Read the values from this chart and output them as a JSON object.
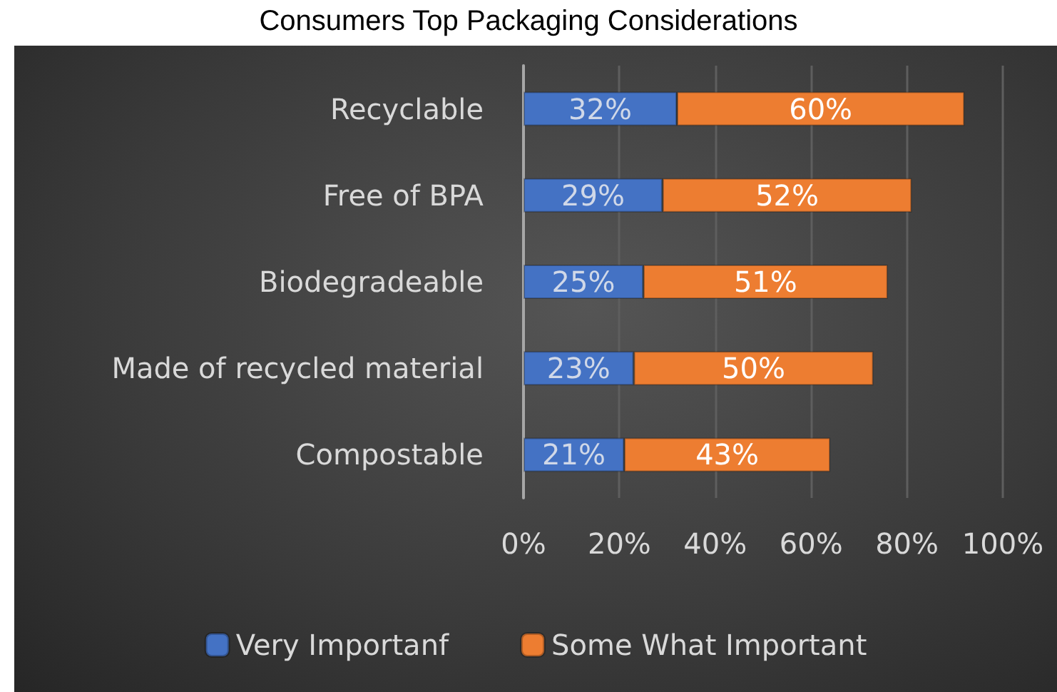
{
  "chart_data": {
    "type": "bar",
    "orientation": "horizontal",
    "stacked": true,
    "title": "Consumers Top Packaging Considerations",
    "categories": [
      "Recyclable",
      "Free of BPA",
      "Biodegradeable",
      "Made of recycled material",
      "Compostable"
    ],
    "series": [
      {
        "name": "Very Importanf",
        "color": "#4472c4",
        "values": [
          32,
          29,
          25,
          23,
          21
        ],
        "value_labels": [
          "32%",
          "29%",
          "25%",
          "23%",
          "21%"
        ]
      },
      {
        "name": "Some What Important",
        "color": "#ed7d31",
        "values": [
          60,
          52,
          51,
          50,
          43
        ],
        "value_labels": [
          "60%",
          "52%",
          "51%",
          "50%",
          "43%"
        ]
      }
    ],
    "xlim": [
      0,
      100
    ],
    "xticks": [
      {
        "value": 0,
        "label": "0%"
      },
      {
        "value": 20,
        "label": "20%"
      },
      {
        "value": 40,
        "label": "40%"
      },
      {
        "value": 60,
        "label": "60%"
      },
      {
        "value": 80,
        "label": "80%"
      },
      {
        "value": 100,
        "label": "100%"
      }
    ],
    "grid": "x",
    "legend": "bottom"
  }
}
